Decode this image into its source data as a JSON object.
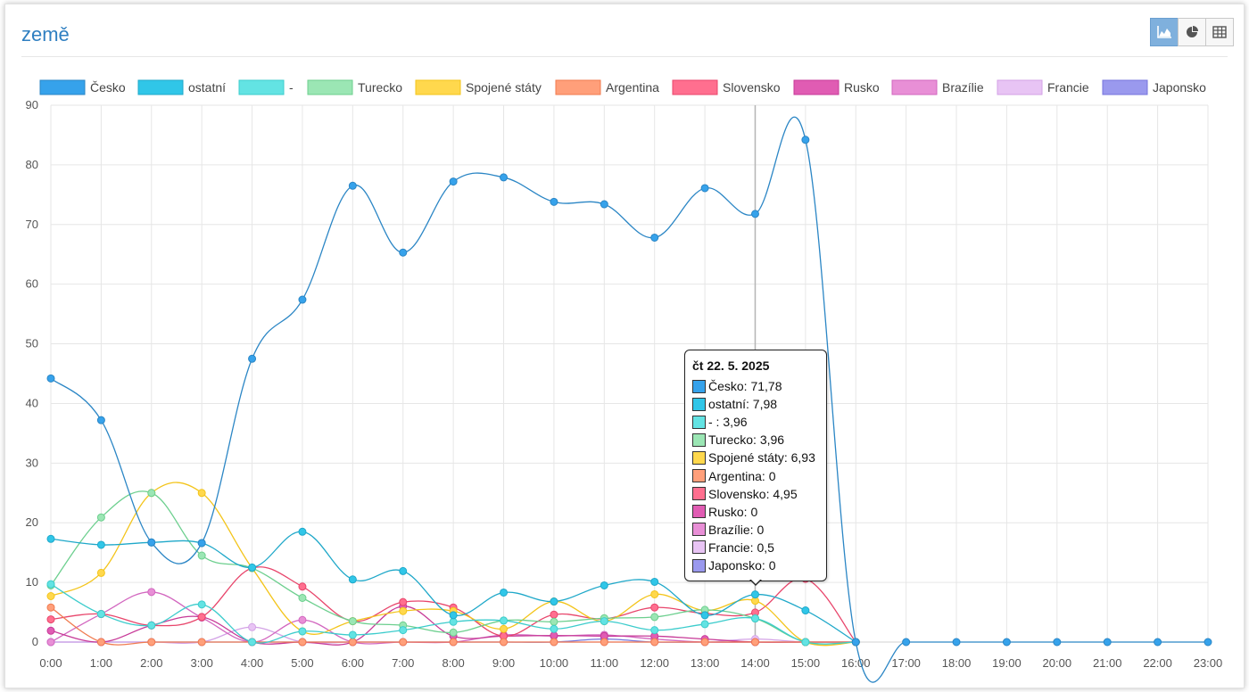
{
  "header": {
    "title": "země"
  },
  "toolbar": {
    "buttons": [
      {
        "name": "area-chart-icon",
        "active": true
      },
      {
        "name": "pie-chart-icon",
        "active": false
      },
      {
        "name": "table-icon",
        "active": false
      }
    ]
  },
  "chart_data": {
    "type": "line",
    "title": "",
    "xlabel": "",
    "ylabel": "",
    "ylim": [
      0,
      90
    ],
    "yticks": [
      0,
      10,
      20,
      30,
      40,
      50,
      60,
      70,
      80,
      90
    ],
    "grid": true,
    "legend_position": "top",
    "categories": [
      "0:00",
      "1:00",
      "2:00",
      "3:00",
      "4:00",
      "5:00",
      "6:00",
      "7:00",
      "8:00",
      "9:00",
      "10:00",
      "11:00",
      "12:00",
      "13:00",
      "14:00",
      "15:00",
      "16:00",
      "17:00",
      "18:00",
      "19:00",
      "20:00",
      "21:00",
      "22:00",
      "23:00"
    ],
    "series": [
      {
        "name": "Česko",
        "color": "#36a2eb",
        "stroke": "#2b86c5",
        "values": [
          44.2,
          37.2,
          16.7,
          16.6,
          47.5,
          57.4,
          76.5,
          65.3,
          77.2,
          77.9,
          73.8,
          73.4,
          67.8,
          76.1,
          71.78,
          84.2,
          0,
          0,
          0,
          0,
          0,
          0,
          0,
          0
        ]
      },
      {
        "name": "ostatní",
        "color": "#30c6e8",
        "stroke": "#1fa8c9",
        "values": [
          17.3,
          16.3,
          16.7,
          16.6,
          12.5,
          18.5,
          10.5,
          11.9,
          4.5,
          8.3,
          6.8,
          9.5,
          10.1,
          4.5,
          7.98,
          5.3,
          0,
          null,
          null,
          null,
          null,
          null,
          null,
          null
        ]
      },
      {
        "name": "-",
        "color": "#63e3e3",
        "stroke": "#3ccccc",
        "values": [
          9.7,
          4.7,
          2.8,
          6.3,
          0,
          1.8,
          1.2,
          2.0,
          3.4,
          3.6,
          2.2,
          3.5,
          2.0,
          3.0,
          3.96,
          0,
          0,
          null,
          null,
          null,
          null,
          null,
          null,
          null
        ]
      },
      {
        "name": "Turecko",
        "color": "#9be6b4",
        "stroke": "#6ccf8e",
        "values": [
          9.5,
          20.9,
          25.0,
          14.5,
          12.4,
          7.4,
          3.5,
          2.8,
          1.6,
          3.6,
          3.4,
          4.0,
          4.2,
          5.4,
          3.96,
          0,
          0,
          null,
          null,
          null,
          null,
          null,
          null,
          null
        ]
      },
      {
        "name": "Spojené státy",
        "color": "#ffd84d",
        "stroke": "#f3c41a",
        "values": [
          7.7,
          11.6,
          25.0,
          25.0,
          12.4,
          1.8,
          3.5,
          5.2,
          5.2,
          2.2,
          6.8,
          3.5,
          8.0,
          5.3,
          6.93,
          0,
          0,
          null,
          null,
          null,
          null,
          null,
          null,
          null
        ]
      },
      {
        "name": "Argentina",
        "color": "#ff9f7a",
        "stroke": "#f07b4f",
        "values": [
          5.8,
          0,
          0,
          0,
          0,
          0,
          0,
          0,
          0,
          0,
          0,
          0,
          0,
          0,
          0,
          0,
          0,
          null,
          null,
          null,
          null,
          null,
          null,
          null
        ]
      },
      {
        "name": "Slovensko",
        "color": "#ff6f8f",
        "stroke": "#e8456b",
        "values": [
          3.8,
          4.7,
          2.8,
          4.2,
          12.4,
          9.3,
          3.5,
          6.7,
          5.8,
          1.0,
          4.6,
          3.9,
          5.8,
          4.8,
          4.95,
          10.6,
          0,
          null,
          null,
          null,
          null,
          null,
          null,
          null
        ]
      },
      {
        "name": "Rusko",
        "color": "#e05cb3",
        "stroke": "#c73a98",
        "values": [
          1.9,
          0,
          2.8,
          4.2,
          0,
          0,
          0,
          6.0,
          1.0,
          1.0,
          1.1,
          1.0,
          1.0,
          0.5,
          0,
          0,
          0,
          null,
          null,
          null,
          null,
          null,
          null,
          null
        ]
      },
      {
        "name": "Brazílie",
        "color": "#e88fd6",
        "stroke": "#d266bf",
        "values": [
          0,
          4.7,
          8.4,
          4.1,
          0,
          3.7,
          0,
          0,
          0,
          1.2,
          1.0,
          1.2,
          0.5,
          0,
          0,
          0,
          0,
          null,
          null,
          null,
          null,
          null,
          null,
          null
        ]
      },
      {
        "name": "Francie",
        "color": "#e8c4f4",
        "stroke": "#d3a2e6",
        "values": [
          0,
          0,
          0,
          0,
          2.5,
          0,
          0,
          0,
          0,
          0,
          0,
          0,
          0,
          0,
          0.5,
          0,
          0,
          null,
          null,
          null,
          null,
          null,
          null,
          null
        ]
      },
      {
        "name": "Japonsko",
        "color": "#9a99ee",
        "stroke": "#7574dc",
        "values": [
          0,
          0,
          0,
          0,
          0,
          0,
          0,
          0,
          0,
          0,
          0,
          0.5,
          0,
          0,
          0,
          0,
          0,
          null,
          null,
          null,
          null,
          null,
          null,
          null
        ]
      }
    ],
    "hover_index": 14
  },
  "tooltip": {
    "title": "čt 22. 5. 2025",
    "rows": [
      {
        "label": "Česko: 71,78",
        "color": "#36a2eb"
      },
      {
        "label": "ostatní: 7,98",
        "color": "#30c6e8"
      },
      {
        "label": "- : 3,96",
        "color": "#63e3e3"
      },
      {
        "label": "Turecko: 3,96",
        "color": "#9be6b4"
      },
      {
        "label": "Spojené státy: 6,93",
        "color": "#ffd84d"
      },
      {
        "label": "Argentina: 0",
        "color": "#ff9f7a"
      },
      {
        "label": "Slovensko: 4,95",
        "color": "#ff6f8f"
      },
      {
        "label": "Rusko: 0",
        "color": "#e05cb3"
      },
      {
        "label": "Brazílie: 0",
        "color": "#e88fd6"
      },
      {
        "label": "Francie: 0,5",
        "color": "#e8c4f4"
      },
      {
        "label": "Japonsko: 0",
        "color": "#9a99ee"
      }
    ]
  }
}
